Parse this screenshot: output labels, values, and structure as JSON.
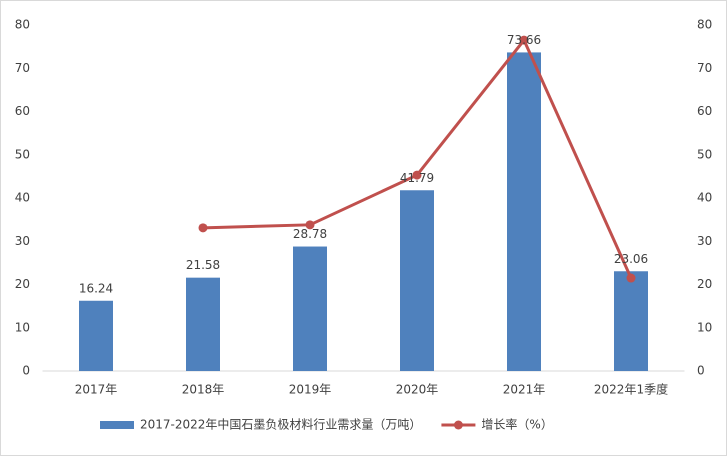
{
  "chart_data": {
    "type": "bar",
    "categories": [
      "2017年",
      "2018年",
      "2019年",
      "2020年",
      "2021年",
      "2022年1季度"
    ],
    "series": [
      {
        "name": "2017-2022年中国石墨负极材料行业需求量（万吨）",
        "type": "bar",
        "color": "#4f81bd",
        "values": [
          16.24,
          21.58,
          28.78,
          41.79,
          73.66,
          23.06
        ],
        "show_labels": true
      },
      {
        "name": "增长率（%）",
        "type": "line",
        "axis": "y2",
        "color": "#c0504d",
        "values": [
          null,
          33.1,
          33.8,
          45.3,
          76.5,
          21.5
        ]
      }
    ],
    "ylim": [
      0,
      80
    ],
    "yticks": [
      0,
      10,
      20,
      30,
      40,
      50,
      60,
      70,
      80
    ],
    "y2lim": [
      0,
      80
    ],
    "y2ticks": [
      0,
      10,
      20,
      30,
      40,
      50,
      60,
      70,
      80
    ],
    "grid": false,
    "legend": "bottom"
  }
}
